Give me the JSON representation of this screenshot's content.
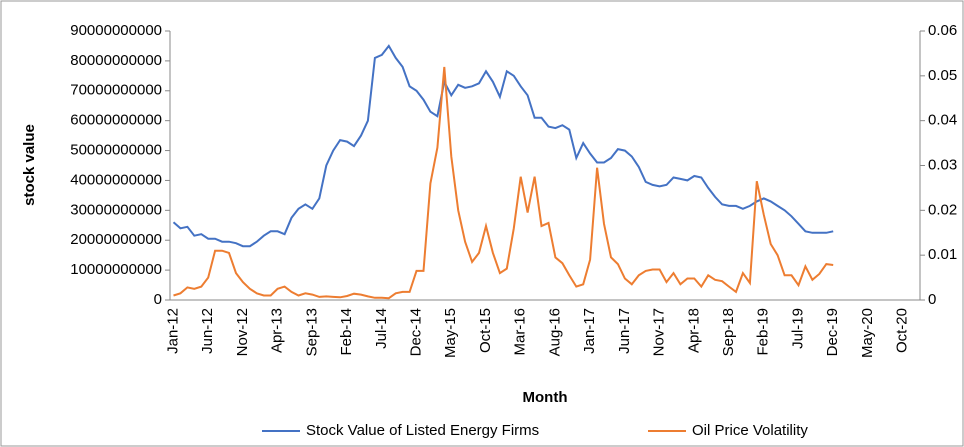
{
  "chart_data": {
    "type": "line",
    "xlabel": "Month",
    "ylabel": "stock  value",
    "categories": [
      "Jan-12",
      null,
      null,
      null,
      null,
      "Jun-12",
      null,
      null,
      null,
      null,
      "Nov-12",
      null,
      null,
      null,
      null,
      "Apr-13",
      null,
      null,
      null,
      null,
      "Sep-13",
      null,
      null,
      null,
      null,
      "Feb-14",
      null,
      null,
      null,
      null,
      "Jul-14",
      null,
      null,
      null,
      null,
      "Dec-14",
      null,
      null,
      null,
      null,
      "May-15",
      null,
      null,
      null,
      null,
      "Oct-15",
      null,
      null,
      null,
      null,
      "Mar-16",
      null,
      null,
      null,
      null,
      "Aug-16",
      null,
      null,
      null,
      null,
      "Jan-17",
      null,
      null,
      null,
      null,
      "Jun-17",
      null,
      null,
      null,
      null,
      "Nov-17",
      null,
      null,
      null,
      null,
      "Apr-18",
      null,
      null,
      null,
      null,
      "Sep-18",
      null,
      null,
      null,
      null,
      "Feb-19",
      null,
      null,
      null,
      null,
      "Jul-19",
      null,
      null,
      null,
      null,
      "Dec-19",
      null,
      null,
      null,
      null,
      "May-20",
      null,
      null,
      null,
      null,
      "Oct-20",
      null,
      null
    ],
    "series": [
      {
        "name": "Stock Value of Listed Energy Firms",
        "color": "#4472c4",
        "axis": "y",
        "values": [
          26000000000,
          24000000000,
          24500000000,
          21500000000,
          22000000000,
          20500000000,
          20500000000,
          19500000000,
          19500000000,
          19000000000,
          18000000000,
          18000000000,
          19500000000,
          21500000000,
          23000000000,
          23000000000,
          22000000000,
          27500000000,
          30500000000,
          32000000000,
          30500000000,
          34000000000,
          45000000000,
          50000000000,
          53500000000,
          53000000000,
          51500000000,
          55000000000,
          60000000000,
          81000000000,
          82000000000,
          85000000000,
          81000000000,
          78000000000,
          71500000000,
          70000000000,
          67000000000,
          63000000000,
          61500000000,
          73000000000,
          68500000000,
          72000000000,
          71000000000,
          71500000000,
          72500000000,
          76500000000,
          73000000000,
          68000000000,
          76500000000,
          75000000000,
          71500000000,
          68500000000,
          61000000000,
          61000000000,
          58000000000,
          57500000000,
          58500000000,
          57000000000,
          47500000000,
          52500000000,
          49000000000,
          46000000000,
          46000000000,
          47500000000,
          50500000000,
          50000000000,
          48000000000,
          44500000000,
          39500000000,
          38500000000,
          38000000000,
          38500000000,
          41000000000,
          40500000000,
          40000000000,
          41500000000,
          41000000000,
          37500000000,
          34500000000,
          32000000000,
          31500000000,
          31500000000,
          30500000000,
          31500000000,
          33000000000,
          34000000000,
          33000000000,
          31500000000,
          30000000000,
          28000000000,
          25500000000,
          23000000000,
          22500000000,
          22500000000,
          22500000000,
          23000000000,
          null,
          null,
          null,
          null,
          null,
          null,
          null,
          null,
          null,
          null,
          null,
          null
        ]
      },
      {
        "name": "Oil Price Volatility",
        "color": "#ed7d31",
        "axis": "y2",
        "values": [
          0.001,
          0.0015,
          0.0028,
          0.0025,
          0.003,
          0.005,
          0.011,
          0.011,
          0.0105,
          0.006,
          0.004,
          0.0025,
          0.0015,
          0.001,
          0.001,
          0.0025,
          0.003,
          0.0018,
          0.001,
          0.0015,
          0.0012,
          0.0007,
          0.0008,
          0.0007,
          0.0006,
          0.0009,
          0.0014,
          0.0012,
          0.0008,
          0.0005,
          0.0005,
          0.0004,
          0.0015,
          0.0018,
          0.0018,
          0.0065,
          0.0065,
          0.026,
          0.034,
          0.052,
          0.032,
          0.02,
          0.013,
          0.0085,
          0.0105,
          0.0165,
          0.0105,
          0.006,
          0.007,
          0.016,
          0.0275,
          0.0195,
          0.0275,
          0.0165,
          0.0172,
          0.0095,
          0.0082,
          0.0055,
          0.003,
          0.0035,
          0.009,
          0.0295,
          0.017,
          0.0095,
          0.008,
          0.0048,
          0.0035,
          0.0055,
          0.0065,
          0.0068,
          0.0068,
          0.004,
          0.006,
          0.0035,
          0.0048,
          0.0048,
          0.003,
          0.0055,
          0.0045,
          0.0042,
          0.003,
          0.0018,
          0.006,
          0.0038,
          0.0265,
          0.019,
          0.0125,
          0.01,
          0.0055,
          0.0055,
          0.0033,
          0.0075,
          0.0045,
          0.0058,
          0.008,
          0.0078,
          null,
          null,
          null,
          null,
          null,
          null,
          null,
          null,
          null,
          null,
          null,
          null
        ]
      }
    ],
    "ylim": [
      0,
      90000000000
    ],
    "yticks": [
      0,
      10000000000,
      20000000000,
      30000000000,
      40000000000,
      50000000000,
      60000000000,
      70000000000,
      80000000000,
      90000000000
    ],
    "y2lim": [
      0,
      0.06
    ],
    "y2ticks": [
      0,
      0.01,
      0.02,
      0.03,
      0.04,
      0.05,
      0.06
    ],
    "legend": "bottom"
  }
}
